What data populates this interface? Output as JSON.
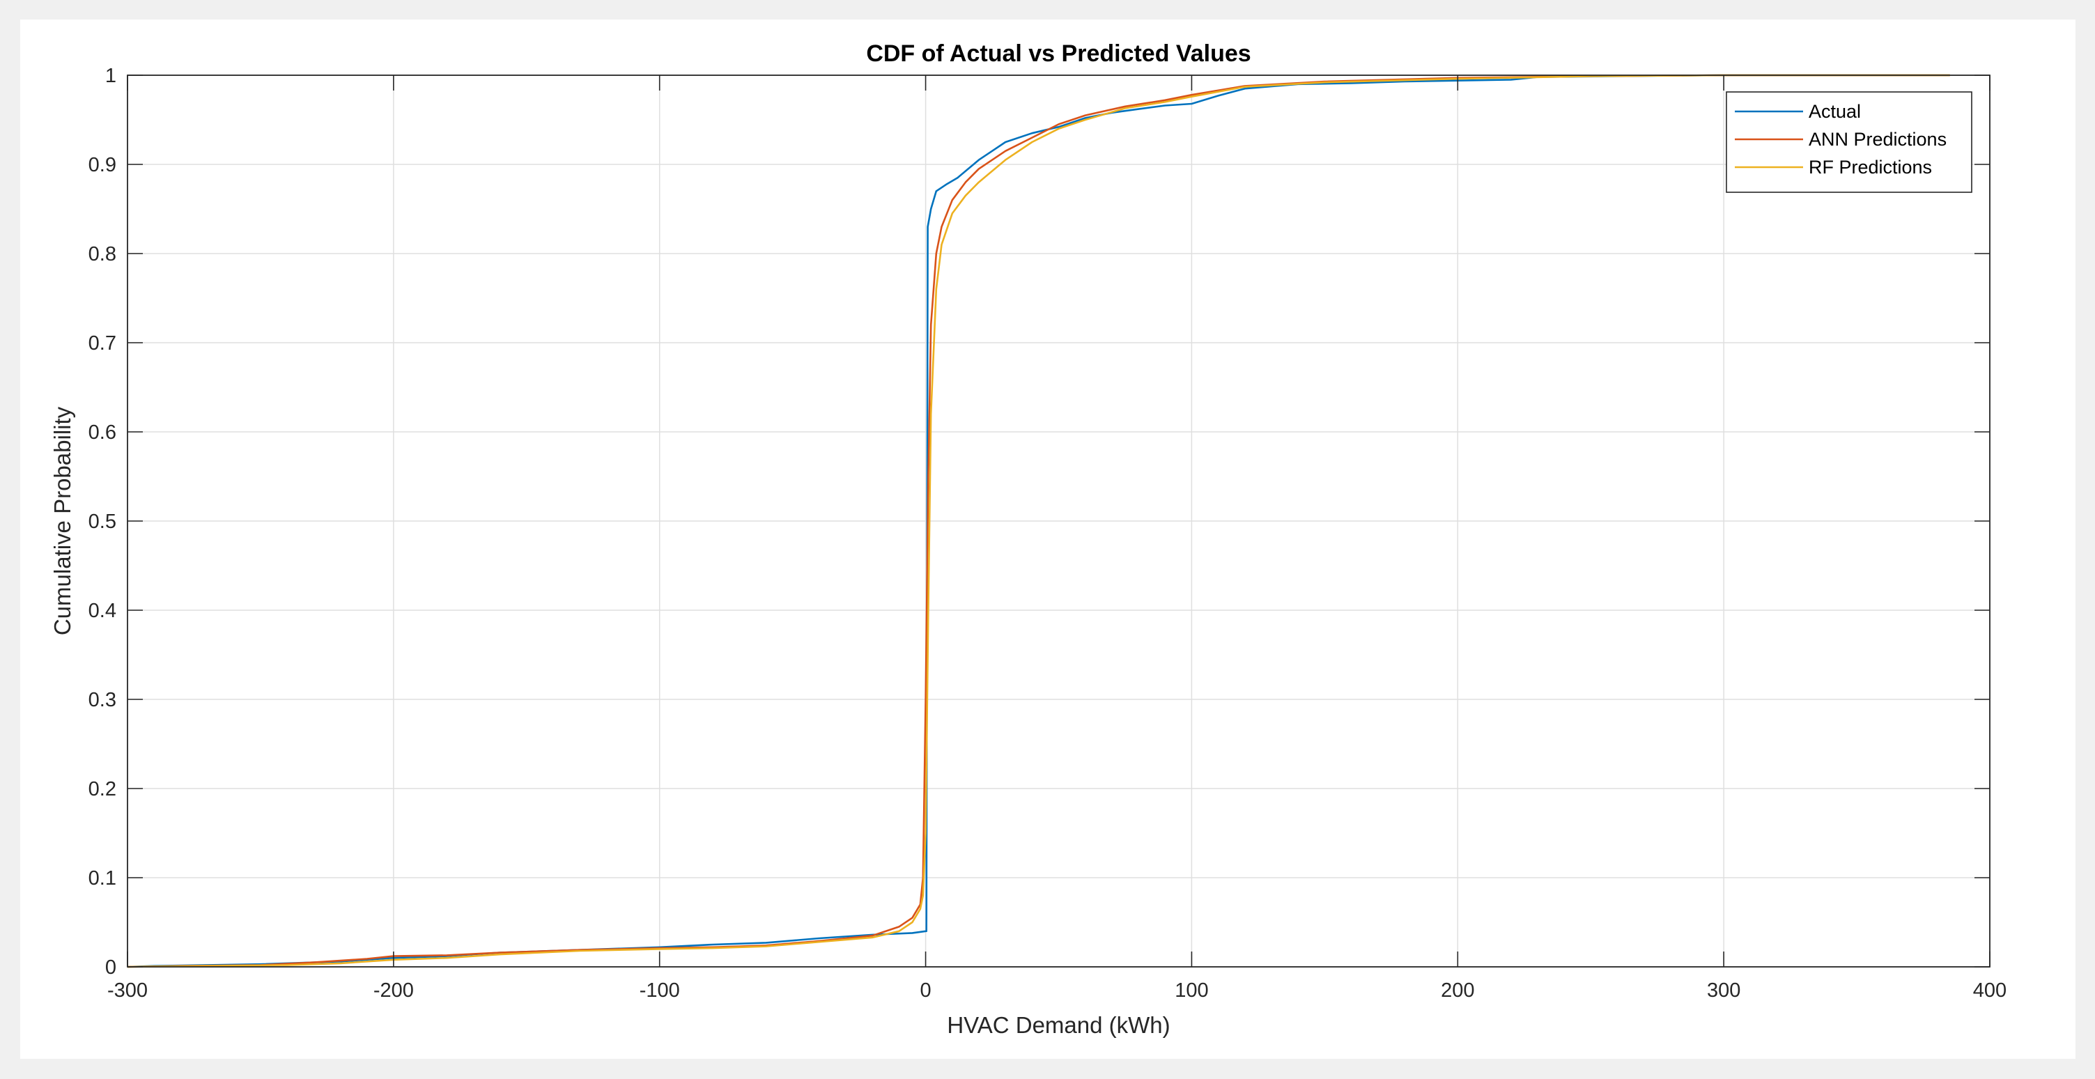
{
  "chart_data": {
    "type": "line",
    "title": "CDF of Actual vs Predicted Values",
    "xlabel": "HVAC Demand (kWh)",
    "ylabel": "Cumulative Probability",
    "xlim": [
      -300,
      400
    ],
    "ylim": [
      0,
      1
    ],
    "xticks": [
      -300,
      -200,
      -100,
      0,
      100,
      200,
      300,
      400
    ],
    "yticks": [
      0,
      0.1,
      0.2,
      0.3,
      0.4,
      0.5,
      0.6,
      0.7,
      0.8,
      0.9,
      1
    ],
    "grid": true,
    "legend_position": "top-right",
    "series": [
      {
        "name": "Actual",
        "color": "#0072bd",
        "points": [
          [
            -300,
            0.0
          ],
          [
            -290,
            0.001
          ],
          [
            -250,
            0.003
          ],
          [
            -220,
            0.006
          ],
          [
            -200,
            0.01
          ],
          [
            -180,
            0.012
          ],
          [
            -160,
            0.016
          ],
          [
            -130,
            0.019
          ],
          [
            -100,
            0.022
          ],
          [
            -80,
            0.025
          ],
          [
            -60,
            0.027
          ],
          [
            -40,
            0.032
          ],
          [
            -20,
            0.036
          ],
          [
            -5,
            0.038
          ],
          [
            0,
            0.04
          ],
          [
            0.3,
            0.04
          ],
          [
            0.8,
            0.83
          ],
          [
            2,
            0.85
          ],
          [
            4,
            0.87
          ],
          [
            8,
            0.878
          ],
          [
            12,
            0.885
          ],
          [
            16,
            0.895
          ],
          [
            20,
            0.905
          ],
          [
            25,
            0.915
          ],
          [
            30,
            0.925
          ],
          [
            40,
            0.935
          ],
          [
            50,
            0.942
          ],
          [
            60,
            0.952
          ],
          [
            70,
            0.958
          ],
          [
            80,
            0.962
          ],
          [
            90,
            0.966
          ],
          [
            100,
            0.968
          ],
          [
            110,
            0.977
          ],
          [
            120,
            0.985
          ],
          [
            140,
            0.99
          ],
          [
            160,
            0.991
          ],
          [
            180,
            0.993
          ],
          [
            200,
            0.994
          ],
          [
            220,
            0.995
          ],
          [
            230,
            0.998
          ],
          [
            260,
            0.999
          ],
          [
            300,
            1.0
          ],
          [
            385,
            1.0
          ]
        ]
      },
      {
        "name": "ANN Predictions",
        "color": "#d95319",
        "points": [
          [
            -300,
            0.0
          ],
          [
            -280,
            0.001
          ],
          [
            -250,
            0.002
          ],
          [
            -230,
            0.005
          ],
          [
            -210,
            0.009
          ],
          [
            -200,
            0.012
          ],
          [
            -180,
            0.013
          ],
          [
            -160,
            0.016
          ],
          [
            -130,
            0.019
          ],
          [
            -100,
            0.021
          ],
          [
            -80,
            0.022
          ],
          [
            -60,
            0.024
          ],
          [
            -40,
            0.029
          ],
          [
            -20,
            0.035
          ],
          [
            -10,
            0.045
          ],
          [
            -5,
            0.055
          ],
          [
            -2,
            0.07
          ],
          [
            -1,
            0.1
          ],
          [
            0,
            0.3
          ],
          [
            1,
            0.55
          ],
          [
            2,
            0.72
          ],
          [
            4,
            0.8
          ],
          [
            6,
            0.83
          ],
          [
            10,
            0.86
          ],
          [
            15,
            0.88
          ],
          [
            20,
            0.895
          ],
          [
            30,
            0.915
          ],
          [
            40,
            0.93
          ],
          [
            50,
            0.945
          ],
          [
            60,
            0.955
          ],
          [
            75,
            0.965
          ],
          [
            90,
            0.972
          ],
          [
            100,
            0.978
          ],
          [
            120,
            0.988
          ],
          [
            150,
            0.993
          ],
          [
            200,
            0.997
          ],
          [
            250,
            0.999
          ],
          [
            300,
            1.0
          ],
          [
            385,
            1.0
          ]
        ]
      },
      {
        "name": "RF Predictions",
        "color": "#edb120",
        "points": [
          [
            -300,
            0.0
          ],
          [
            -270,
            0.001
          ],
          [
            -240,
            0.002
          ],
          [
            -220,
            0.004
          ],
          [
            -200,
            0.008
          ],
          [
            -180,
            0.01
          ],
          [
            -160,
            0.014
          ],
          [
            -130,
            0.018
          ],
          [
            -100,
            0.02
          ],
          [
            -80,
            0.021
          ],
          [
            -60,
            0.023
          ],
          [
            -40,
            0.028
          ],
          [
            -20,
            0.033
          ],
          [
            -10,
            0.04
          ],
          [
            -5,
            0.05
          ],
          [
            -2,
            0.065
          ],
          [
            -1,
            0.08
          ],
          [
            0,
            0.15
          ],
          [
            1,
            0.4
          ],
          [
            2,
            0.62
          ],
          [
            4,
            0.76
          ],
          [
            6,
            0.81
          ],
          [
            10,
            0.845
          ],
          [
            15,
            0.865
          ],
          [
            20,
            0.88
          ],
          [
            30,
            0.905
          ],
          [
            40,
            0.925
          ],
          [
            50,
            0.94
          ],
          [
            60,
            0.95
          ],
          [
            75,
            0.963
          ],
          [
            90,
            0.97
          ],
          [
            100,
            0.976
          ],
          [
            120,
            0.987
          ],
          [
            150,
            0.992
          ],
          [
            200,
            0.996
          ],
          [
            250,
            0.999
          ],
          [
            300,
            1.0
          ],
          [
            385,
            1.0
          ]
        ]
      }
    ]
  }
}
